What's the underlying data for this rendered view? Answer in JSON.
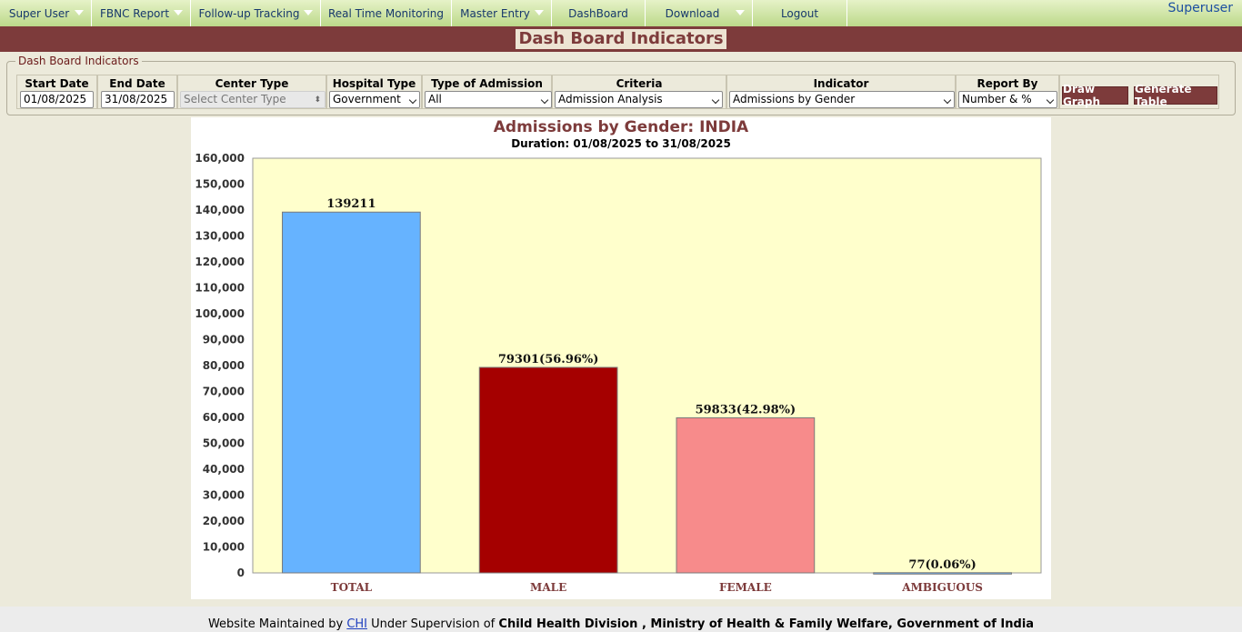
{
  "nav": {
    "items": [
      {
        "label": "Super User",
        "has_menu": true
      },
      {
        "label": "FBNC Report",
        "has_menu": true
      },
      {
        "label": "Follow-up Tracking",
        "has_menu": true
      },
      {
        "label": "Real Time Monitoring",
        "has_menu": false
      },
      {
        "label": "Master Entry",
        "has_menu": true
      },
      {
        "label": "DashBoard",
        "has_menu": false
      },
      {
        "label": "Download",
        "has_menu": true
      },
      {
        "label": "Logout",
        "has_menu": false
      }
    ],
    "user": "Superuser"
  },
  "page_title": "Dash Board Indicators",
  "filters": {
    "legend": "Dash Board Indicators",
    "start_date": {
      "label": "Start Date",
      "value": "01/08/2025"
    },
    "end_date": {
      "label": "End Date",
      "value": "31/08/2025"
    },
    "center_type": {
      "label": "Center Type",
      "value": "Select Center Type"
    },
    "hospital_type": {
      "label": "Hospital Type",
      "value": "Government"
    },
    "admission_type": {
      "label": "Type of Admission",
      "value": "All"
    },
    "criteria": {
      "label": "Criteria",
      "value": "Admission Analysis"
    },
    "indicator": {
      "label": "Indicator",
      "value": "Admissions by Gender"
    },
    "report_by": {
      "label": "Report By",
      "value": "Number & %"
    },
    "draw_graph": "Draw Graph",
    "generate_table": "Generate Table"
  },
  "chart_data": {
    "type": "bar",
    "title": "Admissions by Gender: INDIA",
    "subtitle": "Duration: 01/08/2025 to 31/08/2025",
    "categories": [
      "TOTAL",
      "MALE",
      "FEMALE",
      "AMBIGUOUS"
    ],
    "values": [
      139211,
      79301,
      59833,
      77
    ],
    "data_labels": [
      "139211",
      "79301(56.96%)",
      "59833(42.98%)",
      "77(0.06%)"
    ],
    "colors": [
      "#66b3ff",
      "#a50000",
      "#f78b8b",
      "#66b3ff"
    ],
    "ylim": [
      0,
      160000
    ],
    "yticks": [
      "0",
      "10,000",
      "20,000",
      "30,000",
      "40,000",
      "50,000",
      "60,000",
      "70,000",
      "80,000",
      "90,000",
      "100,000",
      "110,000",
      "120,000",
      "130,000",
      "140,000",
      "150,000",
      "160,000"
    ],
    "plot_background": "#ffffcc",
    "grid": false
  },
  "footer": {
    "prefix": "Website Maintained by",
    "link": "CHI",
    "middle": "Under Supervision of",
    "org": "Child Health Division , Ministry of Health & Family Welfare, Government of India"
  }
}
